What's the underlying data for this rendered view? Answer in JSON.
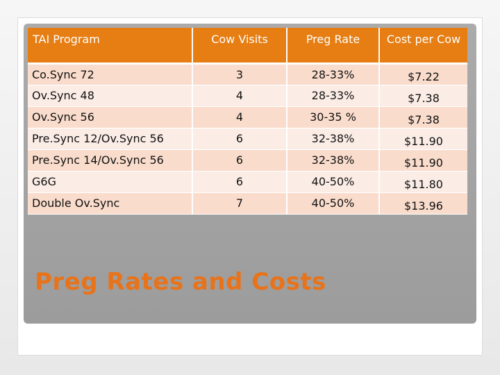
{
  "title": "Preg Rates and Costs",
  "table": {
    "headers": [
      "TAI Program",
      "Cow Visits",
      "Preg Rate",
      "Cost per Cow"
    ],
    "rows": [
      [
        "Co.Sync 72",
        "3",
        "28-33%",
        "$7.22"
      ],
      [
        "Ov.Sync 48",
        "4",
        "28-33%",
        "$7.38"
      ],
      [
        "Ov.Sync 56",
        "4",
        "30-35 %",
        "$7.38"
      ],
      [
        "Pre.Sync 12/Ov.Sync 56",
        "6",
        "32-38%",
        "$11.90"
      ],
      [
        "Pre.Sync 14/Ov.Sync 56",
        "6",
        "32-38%",
        "$11.90"
      ],
      [
        "G6G",
        "6",
        "40-50%",
        "$11.80"
      ],
      [
        "Double Ov.Sync",
        "7",
        "40-50%",
        "$13.96"
      ]
    ]
  },
  "colors": {
    "header_bg": "#e67e13",
    "row_odd": "#f9dccc",
    "row_even": "#fbede6",
    "title": "#e8731a",
    "panel": "#a4a4a4"
  }
}
